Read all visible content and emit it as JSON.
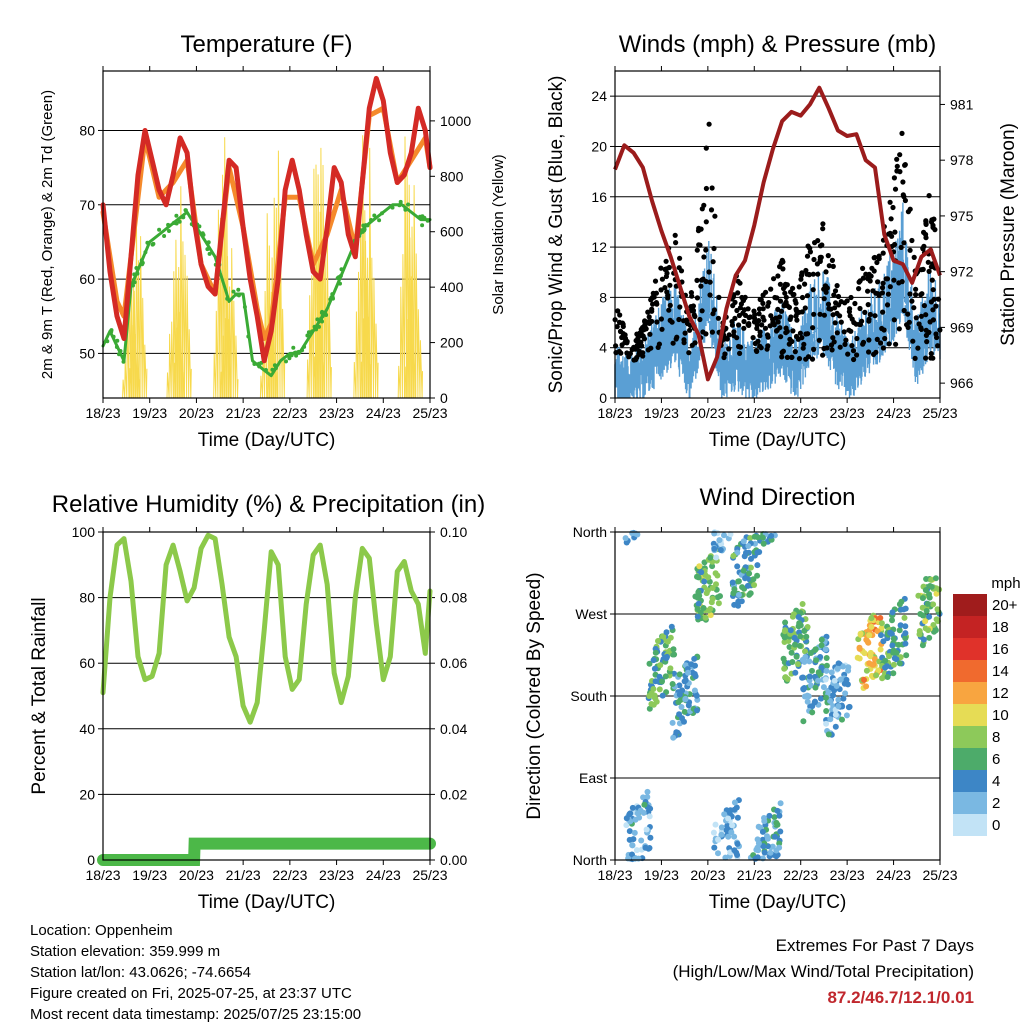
{
  "chart_data": [
    {
      "type": "line",
      "title": "Temperature (F)",
      "xlabel": "Time (Day/UTC)",
      "ylabel": "2m & 9m T (Red, Orange) & 2m Td (Green)",
      "ylabel_right": "Solar Insolation (Yellow)",
      "xticks": [
        "18/23",
        "19/23",
        "20/23",
        "21/23",
        "22/23",
        "23/23",
        "24/23",
        "25/23"
      ],
      "ylim": [
        44,
        88
      ],
      "yticks": [
        50,
        60,
        70,
        80
      ],
      "ylim_right": [
        0,
        1180
      ],
      "yticks_right": [
        0,
        200,
        400,
        600,
        800,
        1000
      ],
      "grid": true,
      "series": [
        {
          "name": "2m T",
          "color": "#d42a25",
          "x": [
            0,
            0.15,
            0.3,
            0.45,
            0.6,
            0.75,
            0.9,
            1.05,
            1.2,
            1.35,
            1.5,
            1.65,
            1.8,
            1.95,
            2.1,
            2.25,
            2.4,
            2.55,
            2.7,
            2.85,
            3.0,
            3.15,
            3.3,
            3.45,
            3.6,
            3.75,
            3.9,
            4.05,
            4.2,
            4.35,
            4.5,
            4.65,
            4.8,
            4.95,
            5.1,
            5.25,
            5.4,
            5.55,
            5.7,
            5.85,
            6.0,
            6.15,
            6.3,
            6.45,
            6.6,
            6.75,
            6.9,
            7.0
          ],
          "values": [
            70,
            61,
            55,
            52,
            63,
            74,
            80,
            76,
            72,
            70,
            74,
            79,
            77,
            68,
            62,
            59,
            58,
            67,
            76,
            75,
            67,
            60,
            55,
            49,
            53,
            60,
            72,
            76,
            72,
            66,
            61,
            60,
            67,
            75,
            73,
            66,
            63,
            73,
            83,
            87,
            84,
            77,
            73,
            74,
            77,
            83,
            80,
            75
          ]
        },
        {
          "name": "9m T",
          "color": "#f58a2b",
          "x": [
            0,
            0.3,
            0.45,
            0.6,
            0.9,
            1.2,
            1.5,
            1.8,
            2.1,
            2.4,
            2.7,
            3.0,
            3.3,
            3.45,
            3.6,
            3.9,
            4.2,
            4.5,
            4.8,
            5.1,
            5.4,
            5.7,
            6.0,
            6.3,
            6.6,
            6.9,
            7.0
          ],
          "values": [
            69,
            57,
            55,
            63,
            79,
            71,
            73,
            76,
            62,
            58,
            75,
            67,
            56,
            52,
            54,
            71,
            71,
            62,
            66,
            72,
            64,
            82,
            83,
            73,
            76,
            79,
            75
          ]
        },
        {
          "name": "2m Td",
          "color": "#3aaa35",
          "x": [
            0,
            0.15,
            0.3,
            0.45,
            0.6,
            0.8,
            1.0,
            1.2,
            1.4,
            1.6,
            1.8,
            2.0,
            2.2,
            2.4,
            2.6,
            2.7,
            2.85,
            3.0,
            3.2,
            3.4,
            3.6,
            3.8,
            4.0,
            4.2,
            4.4,
            4.6,
            4.8,
            5.0,
            5.2,
            5.4,
            5.6,
            5.8,
            6.0,
            6.2,
            6.4,
            6.6,
            6.8,
            7.0
          ],
          "values": [
            51,
            53,
            51,
            49,
            59,
            62,
            65,
            66,
            67,
            68,
            69,
            67,
            65,
            63,
            59,
            57,
            58,
            58,
            49,
            48,
            47,
            49,
            50,
            50,
            52,
            54,
            56,
            59,
            62,
            65,
            67,
            68,
            69,
            70,
            70,
            69,
            68,
            68
          ]
        },
        {
          "name": "Solar",
          "color": "#f7d94c",
          "axis": "right",
          "peaks_x": [
            0.6,
            0.75,
            1.55,
            1.7,
            2.55,
            2.7,
            3.55,
            3.7,
            4.55,
            4.7,
            5.55,
            5.7,
            6.5,
            6.65
          ],
          "peaks_y": [
            520,
            780,
            650,
            900,
            1080,
            680,
            740,
            1060,
            1120,
            1020,
            950,
            930,
            1120,
            820
          ]
        }
      ]
    },
    {
      "type": "scatter",
      "title": "Winds (mph) & Pressure (mb)",
      "xlabel": "Time (Day/UTC)",
      "ylabel": "Sonic/Prop Wind & Gust (Blue, Black)",
      "ylabel_right": "Station Pressure (Maroon)",
      "xticks": [
        "18/23",
        "19/23",
        "20/23",
        "21/23",
        "22/23",
        "23/23",
        "24/23",
        "25/23"
      ],
      "ylim": [
        0,
        26
      ],
      "yticks": [
        0,
        4,
        8,
        12,
        16,
        20,
        24
      ],
      "ylim_right": [
        965.2,
        982.8
      ],
      "yticks_right": [
        966,
        969,
        972,
        975,
        978,
        981
      ],
      "grid": true,
      "series": [
        {
          "name": "Pressure",
          "color": "#9b1c1c",
          "axis": "right",
          "x": [
            0,
            0.2,
            0.4,
            0.6,
            0.8,
            1.0,
            1.2,
            1.4,
            1.6,
            1.8,
            2.0,
            2.2,
            2.4,
            2.6,
            2.8,
            3.0,
            3.2,
            3.4,
            3.6,
            3.8,
            4.0,
            4.2,
            4.4,
            4.6,
            4.8,
            5.0,
            5.2,
            5.4,
            5.6,
            5.8,
            6.0,
            6.2,
            6.4,
            6.6,
            6.8,
            7.0
          ],
          "values": [
            977.5,
            978.8,
            978.4,
            977.6,
            975.8,
            974.2,
            972.8,
            971.2,
            969.6,
            968.6,
            966.2,
            967.4,
            970.0,
            971.8,
            972.6,
            974.5,
            976.8,
            978.6,
            980.1,
            980.6,
            980.4,
            981.0,
            981.9,
            980.8,
            979.6,
            979.3,
            979.4,
            978.0,
            977.6,
            974.0,
            972.6,
            972.4,
            971.4,
            972.8,
            973.2,
            971.8
          ]
        },
        {
          "name": "Gust",
          "color": "#000000",
          "x": [
            0,
            0.3,
            0.6,
            1.0,
            1.3,
            1.6,
            1.9,
            2.0,
            2.3,
            2.6,
            3.0,
            3.3,
            3.6,
            3.9,
            4.2,
            4.5,
            4.8,
            5.1,
            5.4,
            5.7,
            6.0,
            6.2,
            6.5,
            6.8,
            7.0
          ],
          "values": [
            9,
            4,
            6,
            11,
            13,
            7,
            17,
            24,
            6,
            10,
            7,
            9,
            11,
            8,
            13,
            14,
            9,
            8,
            11,
            12,
            18,
            22,
            10,
            17,
            14
          ]
        },
        {
          "name": "Wind",
          "color": "#5a9fd4",
          "x": [
            0,
            0.3,
            0.6,
            1.0,
            1.3,
            1.6,
            1.9,
            2.0,
            2.3,
            2.6,
            3.0,
            3.3,
            3.6,
            3.9,
            4.2,
            4.5,
            4.8,
            5.1,
            5.4,
            5.7,
            6.0,
            6.2,
            6.5,
            6.8,
            7.0
          ],
          "values": [
            3,
            2,
            3,
            5,
            6,
            3,
            7,
            9,
            3,
            4,
            3,
            4,
            5,
            3,
            6,
            7,
            4,
            3,
            5,
            6,
            8,
            10,
            4,
            7,
            6
          ]
        }
      ]
    },
    {
      "type": "line",
      "title": "Relative Humidity (%) & Precipitation (in)",
      "xlabel": "Time (Day/UTC)",
      "ylabel": "Percent & Total Rainfall",
      "xticks": [
        "18/23",
        "19/23",
        "20/23",
        "21/23",
        "22/23",
        "23/23",
        "24/23",
        "25/23"
      ],
      "ylim": [
        0,
        100
      ],
      "yticks": [
        0,
        20,
        40,
        60,
        80,
        100
      ],
      "ylim_right": [
        0,
        0.1
      ],
      "yticks_right": [
        0.0,
        0.02,
        0.04,
        0.06,
        0.08,
        0.1
      ],
      "ytick_labels_right": [
        "0.00",
        "0.02",
        "0.04",
        "0.06",
        "0.08",
        "0.10"
      ],
      "grid": true,
      "series": [
        {
          "name": "RH",
          "color": "#8cc94a",
          "x": [
            0,
            0.15,
            0.3,
            0.45,
            0.6,
            0.75,
            0.9,
            1.05,
            1.2,
            1.35,
            1.5,
            1.65,
            1.8,
            1.95,
            2.1,
            2.25,
            2.4,
            2.55,
            2.7,
            2.85,
            3.0,
            3.15,
            3.3,
            3.45,
            3.6,
            3.75,
            3.9,
            4.05,
            4.2,
            4.35,
            4.5,
            4.65,
            4.8,
            4.95,
            5.1,
            5.25,
            5.4,
            5.55,
            5.7,
            5.85,
            6.0,
            6.15,
            6.3,
            6.45,
            6.6,
            6.75,
            6.9,
            7.0
          ],
          "values": [
            51,
            80,
            96,
            98,
            85,
            62,
            55,
            56,
            63,
            90,
            96,
            88,
            79,
            83,
            95,
            99,
            98,
            84,
            68,
            62,
            47,
            42,
            48,
            70,
            94,
            90,
            62,
            52,
            55,
            78,
            93,
            96,
            84,
            57,
            48,
            56,
            80,
            95,
            92,
            72,
            55,
            62,
            88,
            91,
            82,
            78,
            63,
            82
          ]
        },
        {
          "name": "Precip",
          "color": "#4cb848",
          "axis": "right",
          "x": [
            0,
            1.95,
            1.96,
            7.0
          ],
          "values": [
            0.0,
            0.0,
            0.005,
            0.005
          ]
        }
      ]
    },
    {
      "type": "scatter",
      "title": "Wind Direction",
      "xlabel": "Time (Day/UTC)",
      "ylabel": "Direction (Colored By Speed)",
      "xticks": [
        "18/23",
        "19/23",
        "20/23",
        "21/23",
        "22/23",
        "23/23",
        "24/23",
        "25/23"
      ],
      "ylim": [
        0,
        360
      ],
      "yticks": [
        0,
        90,
        180,
        270,
        360
      ],
      "ytick_labels": [
        "North",
        "East",
        "South",
        "West",
        "North"
      ],
      "grid": true,
      "colorbar_title": "mph",
      "colorbar_labels": [
        "20+",
        "18",
        "16",
        "14",
        "12",
        "10",
        "8",
        "6",
        "4",
        "2",
        "0"
      ],
      "colorbar_colors": [
        "#a01c1c",
        "#c42323",
        "#e0322a",
        "#f06a2e",
        "#f8a540",
        "#e6dc55",
        "#8dc95a",
        "#4dab6a",
        "#3d86c6",
        "#7ab8e2",
        "#c2e3f6"
      ],
      "clusters": [
        {
          "x": 0.5,
          "dir": 30,
          "speed": 3
        },
        {
          "x": 1.0,
          "dir": 210,
          "speed": 6
        },
        {
          "x": 1.5,
          "dir": 180,
          "speed": 4
        },
        {
          "x": 2.0,
          "dir": 300,
          "speed": 7
        },
        {
          "x": 2.4,
          "dir": 20,
          "speed": 2
        },
        {
          "x": 2.8,
          "dir": 320,
          "speed": 5
        },
        {
          "x": 3.3,
          "dir": 20,
          "speed": 4
        },
        {
          "x": 3.9,
          "dir": 240,
          "speed": 6
        },
        {
          "x": 4.3,
          "dir": 200,
          "speed": 4
        },
        {
          "x": 4.8,
          "dir": 180,
          "speed": 3
        },
        {
          "x": 5.5,
          "dir": 230,
          "speed": 11
        },
        {
          "x": 6.0,
          "dir": 240,
          "speed": 6
        },
        {
          "x": 6.8,
          "dir": 280,
          "speed": 7
        }
      ]
    }
  ],
  "meta": {
    "location": "Location: Oppenheim",
    "elevation": "Station elevation: 359.999 m",
    "latlon": "Station lat/lon: 43.0626; -74.6654",
    "created": "Figure created on Fri, 2025-07-25, at 23:37 UTC",
    "recent": "Most recent data timestamp: 2025/07/25 23:15:00"
  },
  "extremes": {
    "title": "Extremes For Past 7 Days",
    "subtitle": "(High/Low/Max Wind/Total Precipitation)",
    "values": "87.2/46.7/12.1/0.01"
  }
}
